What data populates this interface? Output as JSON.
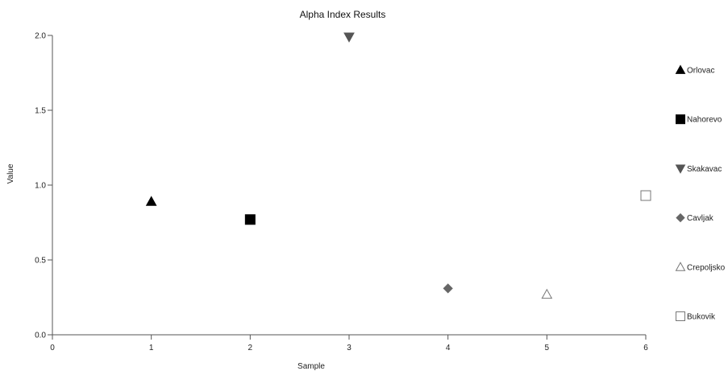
{
  "chart_data": {
    "type": "scatter",
    "title": "Alpha Index Results",
    "xlabel": "Sample",
    "ylabel": "Value",
    "xlim": [
      0,
      6
    ],
    "ylim": [
      0,
      2
    ],
    "xticks": [
      0,
      1,
      2,
      3,
      4,
      5,
      6
    ],
    "yticks": [
      "0.0",
      "0.5",
      "1.0",
      "1.5",
      "2.0"
    ],
    "ytick_values": [
      0,
      0.5,
      1.0,
      1.5,
      2.0
    ],
    "grid": false,
    "legend_position": "right",
    "series": [
      {
        "name": "Orlovac",
        "x": 1,
        "y": 0.89,
        "marker": "triangle-up",
        "fill": "#000000",
        "stroke": "#000000"
      },
      {
        "name": "Nahorevo",
        "x": 2,
        "y": 0.77,
        "marker": "square",
        "fill": "#000000",
        "stroke": "#000000"
      },
      {
        "name": "Skakavac",
        "x": 3,
        "y": 1.99,
        "marker": "triangle-down",
        "fill": "#555555",
        "stroke": "#555555"
      },
      {
        "name": "Cavljak",
        "x": 4,
        "y": 0.31,
        "marker": "diamond",
        "fill": "#666666",
        "stroke": "#666666"
      },
      {
        "name": "Crepoljsko",
        "x": 5,
        "y": 0.27,
        "marker": "triangle-up",
        "fill": "#ffffff",
        "stroke": "#777777"
      },
      {
        "name": "Bukovik",
        "x": 6,
        "y": 0.93,
        "marker": "square",
        "fill": "#ffffff",
        "stroke": "#777777"
      }
    ]
  }
}
